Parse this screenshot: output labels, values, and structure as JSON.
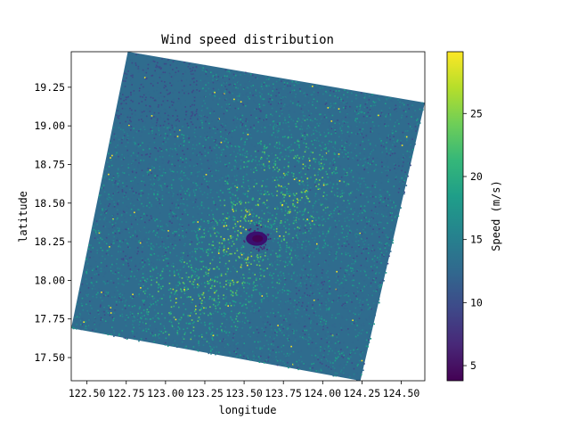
{
  "chart_data": {
    "type": "heatmap",
    "title": "Wind speed distribution",
    "xlabel": "longitude",
    "ylabel": "latitude",
    "xlim": [
      122.4,
      124.65
    ],
    "ylim": [
      17.35,
      19.48
    ],
    "x_ticks": [
      122.5,
      122.75,
      123.0,
      123.25,
      123.5,
      123.75,
      124.0,
      124.25,
      124.5
    ],
    "x_tick_labels": [
      "122.50",
      "122.75",
      "123.00",
      "123.25",
      "123.50",
      "123.75",
      "124.00",
      "124.25",
      "124.50"
    ],
    "y_ticks": [
      17.5,
      17.75,
      18.0,
      18.25,
      18.5,
      18.75,
      19.0,
      19.25
    ],
    "y_tick_labels": [
      "17.50",
      "17.75",
      "18.00",
      "18.25",
      "18.50",
      "18.75",
      "19.00",
      "19.25"
    ],
    "swath_corners": [
      {
        "lon": 122.76,
        "lat": 19.48
      },
      {
        "lon": 124.65,
        "lat": 19.15
      },
      {
        "lon": 124.24,
        "lat": 17.35
      },
      {
        "lon": 122.4,
        "lat": 17.69
      }
    ],
    "eye_center": {
      "lon": 123.58,
      "lat": 18.27
    },
    "colormap": "viridis",
    "colorbar": {
      "label": "Speed (m/s)",
      "range": [
        3.8,
        29.9
      ],
      "ticks": [
        5,
        10,
        15,
        20,
        25
      ],
      "tick_labels": [
        "5",
        "10",
        "15",
        "20",
        "25"
      ]
    },
    "value_range": [
      3.8,
      29.9
    ]
  }
}
